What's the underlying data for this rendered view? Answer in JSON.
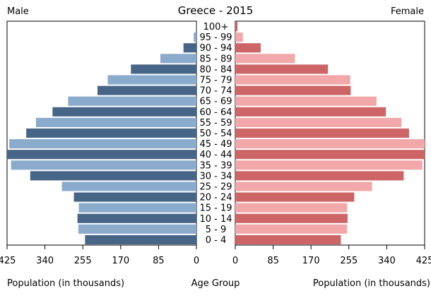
{
  "chart_data": {
    "type": "bar",
    "title": "Greece - 2015",
    "left_label": "Male",
    "right_label": "Female",
    "xlabel_left": "Population (in thousands)",
    "xlabel_center": "Age Group",
    "xlabel_right": "Population (in thousands)",
    "xlim": [
      0,
      425
    ],
    "ticks": [
      0,
      85,
      170,
      255,
      340,
      425
    ],
    "categories": [
      "0 - 4",
      "5 - 9",
      "10 - 14",
      "15 - 19",
      "20 - 24",
      "25 - 29",
      "30 - 34",
      "35 - 39",
      "40 - 44",
      "45 - 49",
      "50 - 54",
      "55 - 59",
      "60 - 64",
      "65 - 69",
      "70 - 74",
      "75 - 79",
      "80 - 84",
      "85 - 89",
      "90 - 94",
      "95 - 99",
      "100+"
    ],
    "series": [
      {
        "name": "Male",
        "values": [
          250,
          265,
          267,
          264,
          275,
          302,
          373,
          416,
          425,
          420,
          382,
          360,
          323,
          288,
          222,
          199,
          147,
          81,
          29,
          6,
          1
        ]
      },
      {
        "name": "Female",
        "values": [
          237,
          251,
          252,
          251,
          267,
          307,
          378,
          420,
          425,
          425,
          390,
          373,
          338,
          317,
          259,
          258,
          208,
          134,
          57,
          17,
          5
        ]
      }
    ],
    "colors": {
      "male_dark": "#476587",
      "male_light": "#8aabcc",
      "female_dark": "#cd6567",
      "female_light": "#f2a8a8"
    }
  }
}
